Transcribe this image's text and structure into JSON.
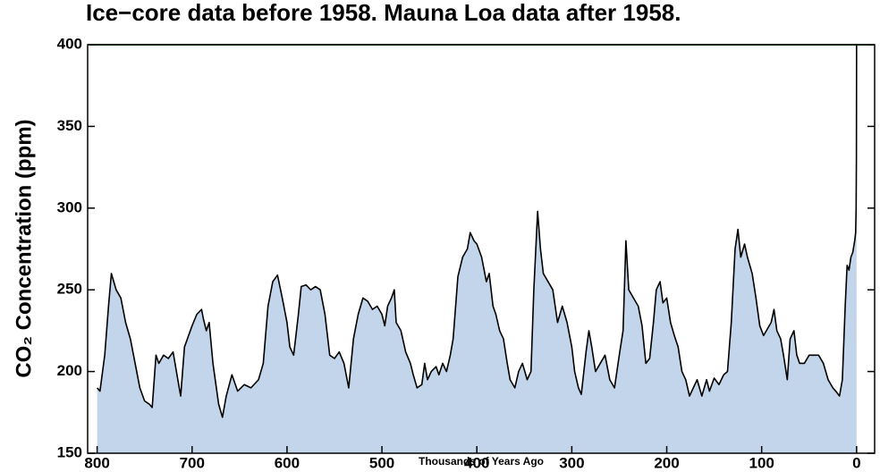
{
  "chart_data": {
    "type": "area",
    "title": "Ice−core data before 1958. Mauna Loa data after 1958.",
    "xlabel": "Thousands of Years Ago",
    "ylabel": "CO₂ Concentration (ppm)",
    "color": "#000000",
    "fill_color": "#c3d5ea",
    "xlim": [
      810,
      -19
    ],
    "ylim": [
      150,
      400
    ],
    "xticks": [
      800,
      700,
      600,
      500,
      400,
      300,
      200,
      100,
      0
    ],
    "yticks": [
      150,
      200,
      250,
      300,
      350,
      400
    ],
    "hlines": [
      {
        "value": 400,
        "color": "#1a8a1a"
      }
    ],
    "x": [
      800,
      797,
      792,
      788,
      785,
      780,
      775,
      770,
      765,
      760,
      755,
      750,
      745,
      742,
      738,
      735,
      730,
      725,
      720,
      715,
      712,
      708,
      700,
      695,
      690,
      688,
      685,
      682,
      678,
      672,
      668,
      664,
      658,
      652,
      645,
      638,
      630,
      625,
      620,
      615,
      610,
      605,
      600,
      597,
      593,
      588,
      585,
      580,
      575,
      570,
      565,
      560,
      555,
      550,
      545,
      540,
      535,
      530,
      525,
      520,
      515,
      510,
      505,
      500,
      497,
      494,
      490,
      487,
      485,
      480,
      475,
      470,
      467,
      463,
      458,
      455,
      452,
      448,
      443,
      440,
      436,
      432,
      428,
      425,
      420,
      415,
      410,
      407,
      403,
      400,
      395,
      390,
      387,
      383,
      380,
      376,
      372,
      368,
      365,
      360,
      356,
      352,
      347,
      343,
      340,
      336,
      333,
      330,
      325,
      320,
      315,
      310,
      305,
      300,
      297,
      293,
      290,
      285,
      282,
      279,
      275,
      270,
      265,
      260,
      255,
      250,
      246,
      243,
      240,
      235,
      230,
      226,
      222,
      218,
      214,
      211,
      207,
      204,
      200,
      196,
      192,
      188,
      184,
      180,
      176,
      172,
      168,
      163,
      158,
      155,
      150,
      145,
      140,
      136,
      132,
      128,
      125,
      122,
      118,
      115,
      110,
      106,
      102,
      98,
      95,
      90,
      87,
      84,
      80,
      77,
      73,
      70,
      66,
      63,
      60,
      55,
      50,
      45,
      40,
      35,
      30,
      25,
      22,
      18,
      15,
      12,
      10,
      8,
      6,
      4,
      2,
      1,
      0.5,
      0.2,
      0
    ],
    "values": [
      190,
      188,
      210,
      240,
      260,
      250,
      245,
      230,
      220,
      205,
      190,
      182,
      180,
      178,
      210,
      205,
      210,
      208,
      212,
      195,
      185,
      215,
      228,
      235,
      238,
      232,
      225,
      230,
      205,
      180,
      172,
      185,
      198,
      188,
      192,
      190,
      195,
      205,
      240,
      255,
      259,
      245,
      230,
      215,
      210,
      235,
      252,
      253,
      250,
      252,
      250,
      235,
      210,
      208,
      212,
      205,
      190,
      220,
      235,
      245,
      243,
      238,
      240,
      235,
      228,
      240,
      245,
      250,
      230,
      225,
      212,
      205,
      198,
      190,
      192,
      205,
      195,
      200,
      203,
      198,
      205,
      200,
      210,
      220,
      258,
      270,
      275,
      285,
      280,
      278,
      270,
      255,
      260,
      240,
      235,
      225,
      220,
      205,
      195,
      190,
      200,
      205,
      195,
      200,
      250,
      298,
      275,
      260,
      255,
      250,
      230,
      240,
      230,
      215,
      200,
      190,
      186,
      212,
      225,
      215,
      200,
      205,
      210,
      195,
      190,
      210,
      225,
      280,
      250,
      245,
      240,
      228,
      205,
      208,
      230,
      250,
      255,
      242,
      245,
      230,
      222,
      215,
      200,
      195,
      185,
      190,
      195,
      185,
      195,
      188,
      196,
      192,
      198,
      200,
      230,
      275,
      287,
      270,
      278,
      270,
      260,
      245,
      228,
      222,
      225,
      230,
      238,
      225,
      220,
      210,
      195,
      220,
      225,
      210,
      205,
      205,
      210,
      210,
      210,
      205,
      195,
      190,
      188,
      185,
      195,
      240,
      265,
      262,
      270,
      273,
      280,
      285,
      300,
      330,
      400
    ]
  }
}
